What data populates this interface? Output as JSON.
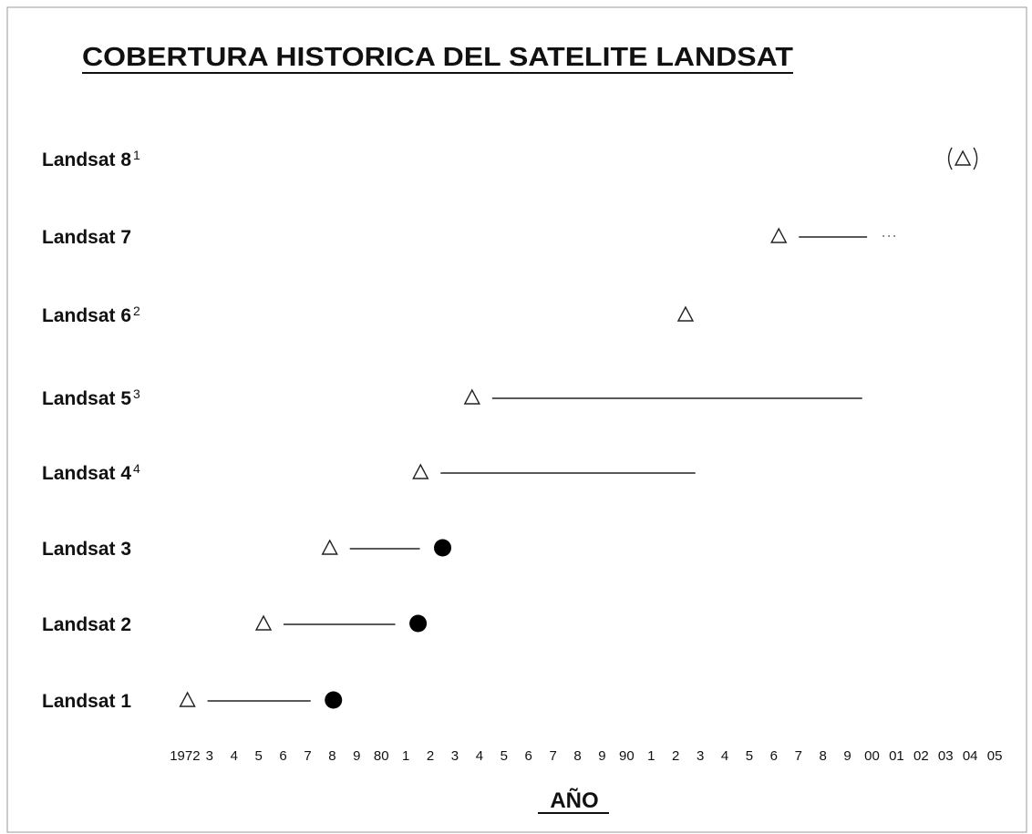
{
  "chart_data": {
    "type": "timeline",
    "title": "COBERTURA HISTORICA DEL SATELITE LANDSAT",
    "x_label": "AÑO",
    "xlim": [
      1971,
      2006
    ],
    "xticks": [
      1972,
      {
        "value": 1973,
        "label": "3"
      },
      {
        "value": 1974,
        "label": "4"
      },
      {
        "value": 1975,
        "label": "5"
      },
      {
        "value": 1976,
        "label": "6"
      },
      {
        "value": 1977,
        "label": "7"
      },
      {
        "value": 1978,
        "label": "8"
      },
      {
        "value": 1979,
        "label": "9"
      },
      {
        "value": 1980,
        "label": "80"
      },
      {
        "value": 1981,
        "label": "1"
      },
      {
        "value": 1982,
        "label": "2"
      },
      {
        "value": 1983,
        "label": "3"
      },
      {
        "value": 1984,
        "label": "4"
      },
      {
        "value": 1985,
        "label": "5"
      },
      {
        "value": 1986,
        "label": "6"
      },
      {
        "value": 1987,
        "label": "7"
      },
      {
        "value": 1988,
        "label": "8"
      },
      {
        "value": 1989,
        "label": "9"
      },
      {
        "value": 1990,
        "label": "90"
      },
      {
        "value": 1991,
        "label": "1"
      },
      {
        "value": 1992,
        "label": "2"
      },
      {
        "value": 1993,
        "label": "3"
      },
      {
        "value": 1994,
        "label": "4"
      },
      {
        "value": 1995,
        "label": "5"
      },
      {
        "value": 1996,
        "label": "6"
      },
      {
        "value": 1997,
        "label": "7"
      },
      {
        "value": 1998,
        "label": "8"
      },
      {
        "value": 1999,
        "label": "9"
      },
      {
        "value": 2000,
        "label": "00"
      },
      {
        "value": 2001,
        "label": "01"
      },
      {
        "value": 2002,
        "label": "02"
      },
      {
        "value": 2003,
        "label": "03"
      },
      {
        "value": 2004,
        "label": "04"
      },
      {
        "value": 2005,
        "label": "05"
      }
    ],
    "series": [
      {
        "name": "Landsat 8",
        "note": "1",
        "launch": 2003.7,
        "end": null,
        "ended": false,
        "planned": true,
        "continues": false
      },
      {
        "name": "Landsat 7",
        "launch": 1996.2,
        "end": 1999.8,
        "ended": false,
        "planned": false,
        "continues": true
      },
      {
        "name": "Landsat 6",
        "note": "2",
        "launch": 1992.4,
        "end": null,
        "ended": false,
        "planned": false,
        "continues": false
      },
      {
        "name": "Landsat 5",
        "note": "3",
        "launch": 1983.7,
        "end": 1999.6,
        "ended": false,
        "planned": false,
        "continues": false
      },
      {
        "name": "Landsat 4",
        "note": "4",
        "launch": 1981.6,
        "end": 1992.8,
        "ended": false,
        "planned": false,
        "continues": false
      },
      {
        "name": "Landsat 3",
        "launch": 1977.9,
        "end": 1982.5,
        "ended": true,
        "planned": false,
        "continues": false
      },
      {
        "name": "Landsat 2",
        "launch": 1975.2,
        "end": 1981.5,
        "ended": true,
        "planned": false,
        "continues": false
      },
      {
        "name": "Landsat 1",
        "launch": 1972.1,
        "end": 1978.05,
        "ended": true,
        "planned": false,
        "continues": false
      }
    ]
  }
}
